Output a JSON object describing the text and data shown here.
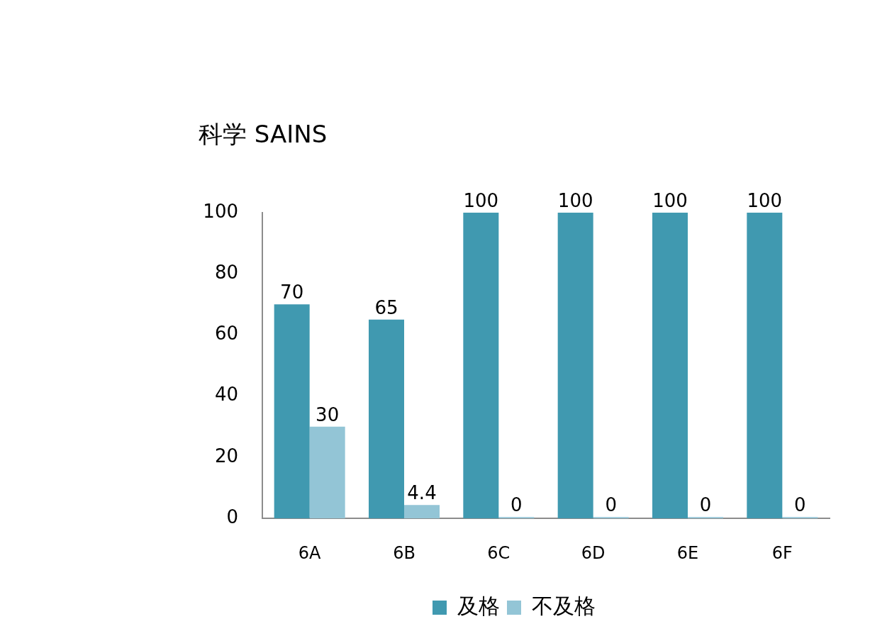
{
  "chart_data": {
    "type": "bar",
    "title": "科学 SAINS",
    "categories": [
      "6A",
      "6B",
      "6C",
      "6D",
      "6E",
      "6F"
    ],
    "series": [
      {
        "name": "及格",
        "color": "#4099b0",
        "values": [
          70,
          65,
          100,
          100,
          100,
          100
        ]
      },
      {
        "name": "不及格",
        "color": "#93c5d6",
        "values": [
          30,
          4.4,
          0,
          0,
          0,
          0
        ]
      }
    ],
    "ylim": [
      0,
      100
    ],
    "yticks": [
      0,
      20,
      40,
      60,
      80,
      100
    ],
    "grid": false,
    "legend": "bottom",
    "data_labels": true
  }
}
